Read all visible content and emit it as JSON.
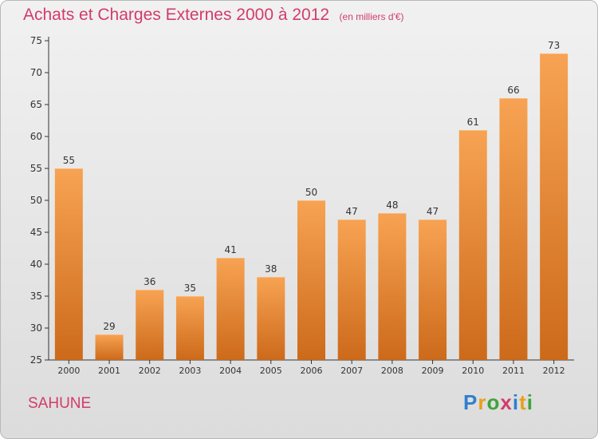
{
  "header": {
    "title": "Achats et Charges Externes 2000 à 2012",
    "subtitle": "(en milliers d'€)"
  },
  "footer": {
    "place": "SAHUNE",
    "brand": "Proxiti"
  },
  "colors": {
    "bar_top": "#f7a353",
    "bar_bottom": "#cc6a1a",
    "title": "#d23c6a",
    "axis": "#333333"
  },
  "chart_data": {
    "type": "bar",
    "categories": [
      "2000",
      "2001",
      "2002",
      "2003",
      "2004",
      "2005",
      "2006",
      "2007",
      "2008",
      "2009",
      "2010",
      "2011",
      "2012"
    ],
    "values": [
      55,
      29,
      36,
      35,
      41,
      38,
      50,
      47,
      48,
      47,
      61,
      66,
      73
    ],
    "title": "Achats et Charges Externes 2000 à 2012",
    "subtitle": "(en milliers d'€)",
    "xlabel": "",
    "ylabel": "",
    "ylim": [
      25,
      75
    ],
    "yticks": [
      25,
      30,
      35,
      40,
      45,
      50,
      55,
      60,
      65,
      70,
      75
    ],
    "grid": false,
    "legend": "none"
  }
}
